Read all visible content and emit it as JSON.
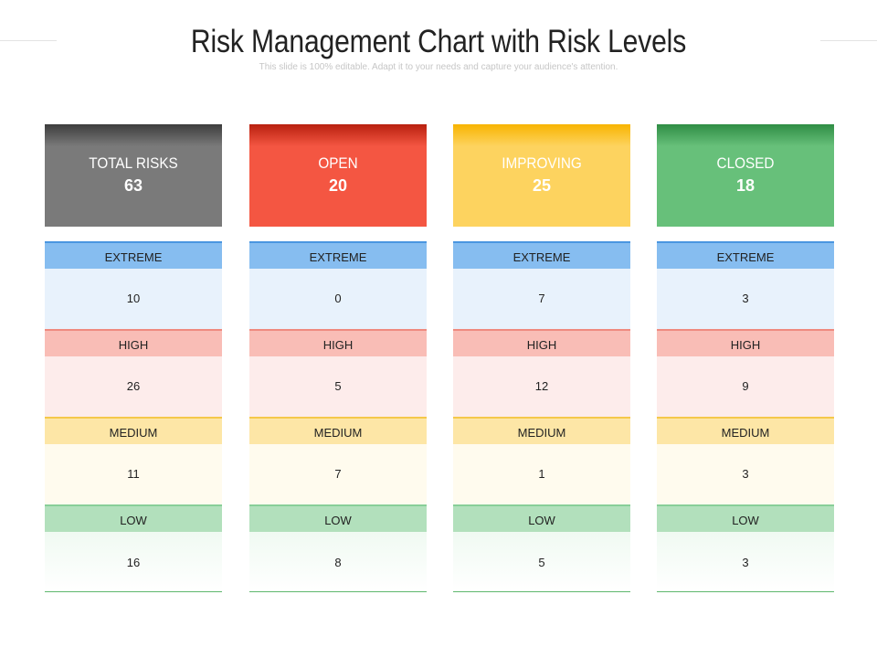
{
  "slide": {
    "title": "Risk Management Chart with Risk Levels",
    "subtitle": "This slide is 100% editable. Adapt it to your needs and capture your audience's attention."
  },
  "columns": [
    {
      "label": "TOTAL RISKS",
      "total": "63",
      "color": "#7a7a7a",
      "color_dark": "#3d3d3d",
      "levels": {
        "extreme": "10",
        "high": "26",
        "medium": "11",
        "low": "16"
      }
    },
    {
      "label": "OPEN",
      "total": "20",
      "color": "#f45642",
      "color_dark": "#b8200f",
      "levels": {
        "extreme": "0",
        "high": "5",
        "medium": "7",
        "low": "8"
      }
    },
    {
      "label": "IMPROVING",
      "total": "25",
      "color": "#fdd35f",
      "color_dark": "#f8b400",
      "levels": {
        "extreme": "7",
        "high": "12",
        "medium": "1",
        "low": "5"
      }
    },
    {
      "label": "CLOSED",
      "total": "18",
      "color": "#67c07a",
      "color_dark": "#2f8d45",
      "levels": {
        "extreme": "3",
        "high": "9",
        "medium": "3",
        "low": "3"
      }
    }
  ],
  "level_labels": {
    "extreme": "EXTREME",
    "high": "HIGH",
    "medium": "MEDIUM",
    "low": "LOW"
  }
}
